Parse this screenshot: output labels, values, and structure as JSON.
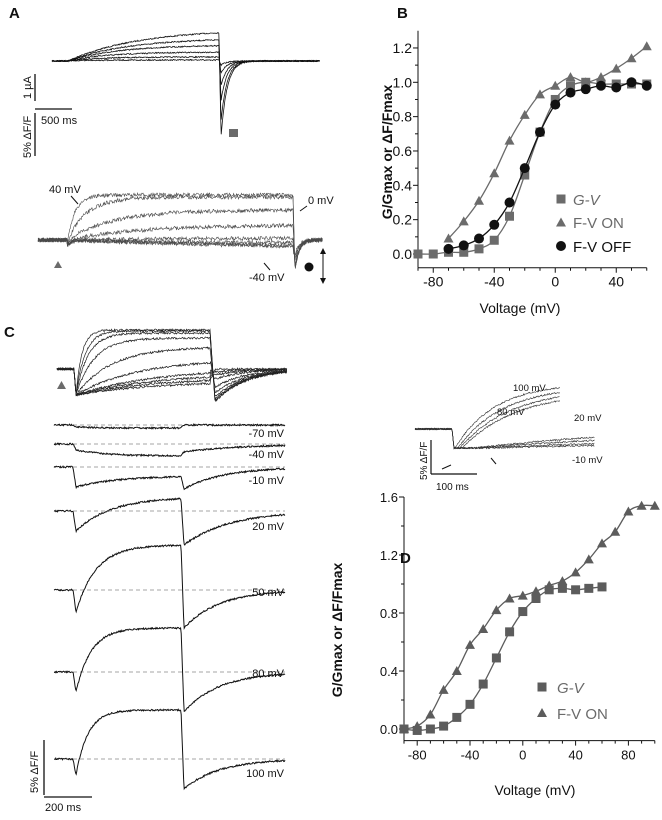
{
  "panels": {
    "a": "A",
    "b": "B",
    "c": "C",
    "d": "D"
  },
  "panel_a": {
    "scale_current": "1 µA",
    "scale_time": "500 ms",
    "scale_fluor": "5% ΔF/F",
    "label_high": "40 mV",
    "label_mid": "0 mV",
    "label_low": "-40 mV"
  },
  "panel_c": {
    "row_labels": [
      "-70 mV",
      "-40 mV",
      "-10 mV",
      "20 mV",
      "50 mV",
      "80 mV",
      "100 mV"
    ],
    "scale_fluor": "5% ΔF/F",
    "scale_time": "200 ms"
  },
  "panel_d_inset": {
    "labels": [
      "100 mV",
      "80 mV",
      "20 mV",
      "-10 mV"
    ],
    "scale_fluor": "5% ΔF/F",
    "scale_time": "100 ms"
  },
  "colors": {
    "gray": "#6b6b6b",
    "dark": "#111111",
    "dgray": "#5c5c5c"
  },
  "chart_data": [
    {
      "type": "scatter",
      "panel": "B",
      "xlabel": "Voltage (mV)",
      "ylabel": "G/Gmax or ΔF/Fmax",
      "xlim": [
        -90,
        60
      ],
      "ylim": [
        -0.08,
        1.3
      ],
      "xticks": [
        "-80",
        "-40",
        "0",
        "40"
      ],
      "yticks": [
        "0.0",
        "0.2",
        "0.4",
        "0.6",
        "0.8",
        "1.0",
        "1.2"
      ],
      "legend_position": "lower-right",
      "series": [
        {
          "name": "G-V",
          "marker": "square",
          "color": "#6b6b6b",
          "x": [
            -90,
            -80,
            -70,
            -60,
            -50,
            -40,
            -30,
            -20,
            -10,
            0,
            10,
            20,
            30,
            40,
            50,
            60
          ],
          "y": [
            0,
            0,
            0.01,
            0.01,
            0.03,
            0.08,
            0.22,
            0.46,
            0.71,
            0.9,
            0.98,
            1.0,
            0.99,
            0.99,
            0.99,
            0.99
          ]
        },
        {
          "name": "F-V ON",
          "marker": "triangle",
          "color": "#6b6b6b",
          "x": [
            -70,
            -60,
            -50,
            -40,
            -30,
            -20,
            -10,
            0,
            10,
            20,
            30,
            40,
            50,
            60
          ],
          "y": [
            0.09,
            0.19,
            0.31,
            0.47,
            0.66,
            0.81,
            0.93,
            0.98,
            1.03,
            1.0,
            1.03,
            1.08,
            1.14,
            1.21
          ]
        },
        {
          "name": "F-V OFF",
          "marker": "circle",
          "color": "#111111",
          "x": [
            -70,
            -60,
            -50,
            -40,
            -30,
            -20,
            -10,
            0,
            10,
            20,
            30,
            40,
            50,
            60
          ],
          "y": [
            0.03,
            0.05,
            0.09,
            0.17,
            0.3,
            0.5,
            0.71,
            0.87,
            0.94,
            0.96,
            0.98,
            0.97,
            1.0,
            0.98
          ]
        }
      ]
    },
    {
      "type": "scatter",
      "panel": "D",
      "xlabel": "Voltage (mV)",
      "ylabel": "G/Gmax or ΔF/Fmax",
      "xlim": [
        -90,
        100
      ],
      "ylim": [
        -0.08,
        1.6
      ],
      "xticks": [
        "-80",
        "-40",
        "0",
        "40",
        "80"
      ],
      "yticks": [
        "0.0",
        "0.4",
        "0.8",
        "1.2",
        "1.6"
      ],
      "legend_position": "lower-right",
      "series": [
        {
          "name": "G-V",
          "marker": "square",
          "color": "#5c5c5c",
          "x": [
            -90,
            -80,
            -70,
            -60,
            -50,
            -40,
            -30,
            -20,
            -10,
            0,
            10,
            20,
            30,
            40,
            50,
            60
          ],
          "y": [
            0,
            -0.01,
            0,
            0.02,
            0.08,
            0.17,
            0.31,
            0.49,
            0.67,
            0.81,
            0.9,
            0.96,
            0.97,
            0.96,
            0.97,
            0.98
          ]
        },
        {
          "name": "F-V ON",
          "marker": "triangle",
          "color": "#5c5c5c",
          "x": [
            -90,
            -80,
            -70,
            -60,
            -50,
            -40,
            -30,
            -20,
            -10,
            0,
            10,
            20,
            30,
            40,
            50,
            60,
            70,
            80,
            90,
            100
          ],
          "y": [
            0,
            0.02,
            0.1,
            0.27,
            0.4,
            0.58,
            0.69,
            0.82,
            0.9,
            0.92,
            0.95,
            0.99,
            1.02,
            1.08,
            1.17,
            1.28,
            1.36,
            1.5,
            1.54,
            1.54
          ]
        }
      ]
    }
  ]
}
